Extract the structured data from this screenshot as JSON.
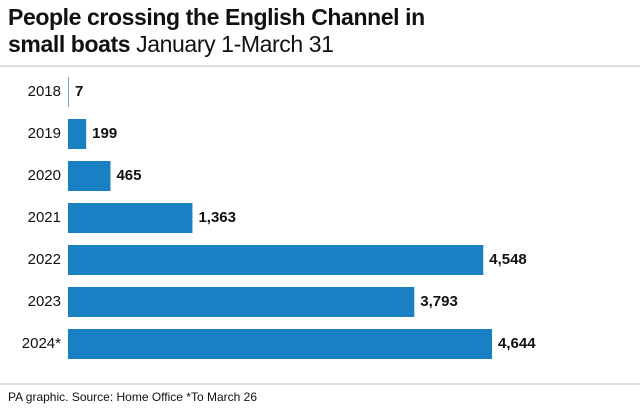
{
  "chart_data": {
    "type": "bar",
    "orientation": "horizontal",
    "title": "People crossing the English Channel in small boats",
    "subtitle": "January 1-March 31",
    "categories": [
      "2018",
      "2019",
      "2020",
      "2021",
      "2022",
      "2023",
      "2024*"
    ],
    "values": [
      7,
      199,
      465,
      1363,
      4548,
      3793,
      4644
    ],
    "value_labels": [
      "7",
      "199",
      "465",
      "1,363",
      "4,548",
      "3,793",
      "4,644"
    ],
    "color": "#1a80c4",
    "source": "PA graphic. Source: Home Office *To March 26"
  }
}
